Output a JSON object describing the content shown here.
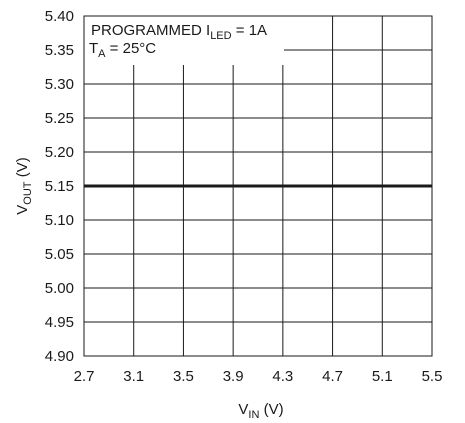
{
  "chart_data": {
    "type": "line",
    "title": "",
    "xlabel": {
      "main": "V",
      "sub": "IN",
      "unit": " (V)"
    },
    "ylabel": {
      "main": "V",
      "sub": "OUT",
      "unit": " (V)"
    },
    "xlim": [
      2.7,
      5.5
    ],
    "ylim": [
      4.9,
      5.4
    ],
    "x_ticks": [
      "2.7",
      "3.1",
      "3.5",
      "3.9",
      "4.3",
      "4.7",
      "5.1",
      "5.5"
    ],
    "y_ticks": [
      "4.90",
      "4.95",
      "5.00",
      "5.05",
      "5.10",
      "5.15",
      "5.20",
      "5.25",
      "5.30",
      "5.35",
      "5.40"
    ],
    "grid": true,
    "series": [
      {
        "x": [
          2.7,
          5.5
        ],
        "y": [
          5.15,
          5.15
        ],
        "color": "#1a1a1a"
      }
    ],
    "annotations": [
      {
        "main": "PROGRAMMED I",
        "sub": "LED",
        "rest": " = 1A"
      },
      {
        "main": "T",
        "sub": "A",
        "rest": " = 25°C"
      }
    ]
  }
}
